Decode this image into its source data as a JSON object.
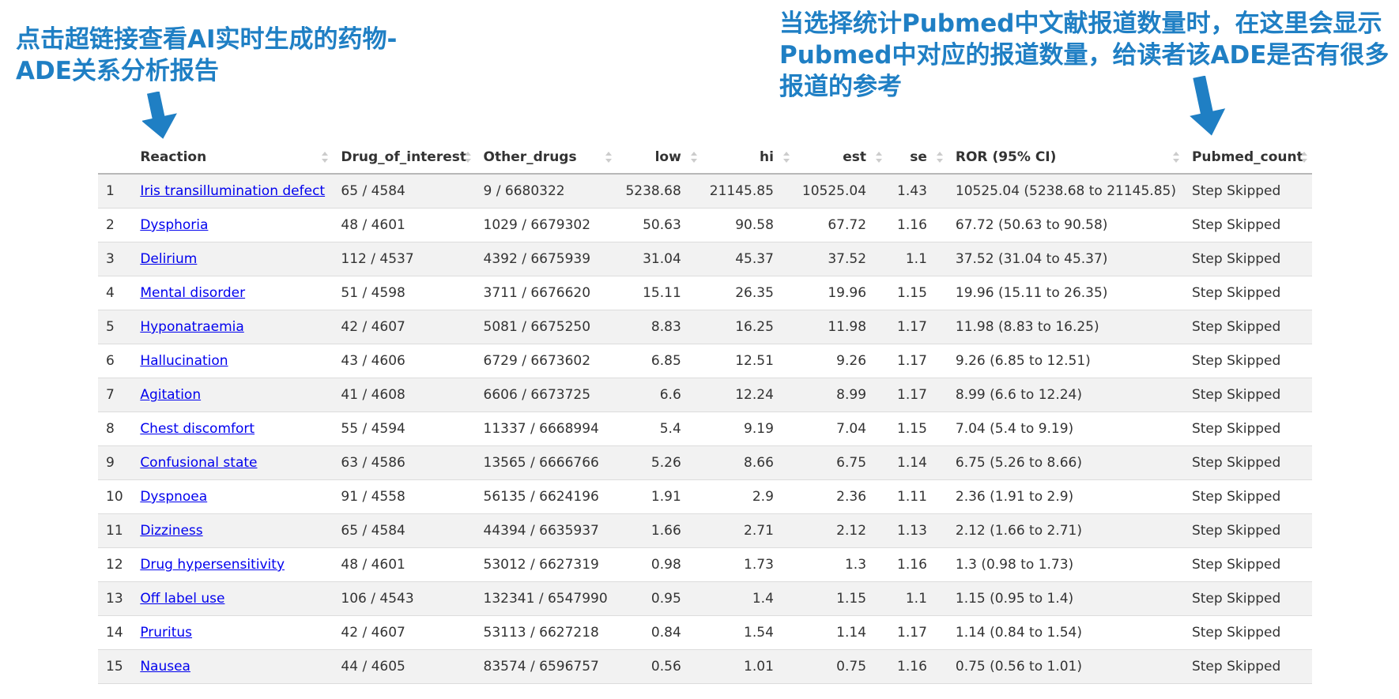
{
  "annotations": {
    "left_text": "点击超链接查看AI实时生成的药物-ADE关系分析报告",
    "right_text": "当选择统计Pubmed中文献报道数量时，在这里会显示Pubmed中对应的报道数量，给读者该ADE是否有很多报道的参考",
    "color": "#1f7fc4"
  },
  "table": {
    "headers": {
      "index": "",
      "reaction": "Reaction",
      "drug_of_interest": "Drug_of_interest",
      "other_drugs": "Other_drugs",
      "low": "low",
      "hi": "hi",
      "est": "est",
      "se": "se",
      "ror": "ROR (95% CI)",
      "pubmed_count": "Pubmed_count"
    },
    "rows": [
      {
        "idx": "1",
        "reaction": "Iris transillumination defect",
        "drug": "65 / 4584",
        "other": "9 / 6680322",
        "low": "5238.68",
        "hi": "21145.85",
        "est": "10525.04",
        "se": "1.43",
        "ror": "10525.04 (5238.68 to 21145.85)",
        "pubmed": "Step Skipped"
      },
      {
        "idx": "2",
        "reaction": "Dysphoria",
        "drug": "48 / 4601",
        "other": "1029 / 6679302",
        "low": "50.63",
        "hi": "90.58",
        "est": "67.72",
        "se": "1.16",
        "ror": "67.72 (50.63 to 90.58)",
        "pubmed": "Step Skipped"
      },
      {
        "idx": "3",
        "reaction": "Delirium",
        "drug": "112 / 4537",
        "other": "4392 / 6675939",
        "low": "31.04",
        "hi": "45.37",
        "est": "37.52",
        "se": "1.1",
        "ror": "37.52 (31.04 to 45.37)",
        "pubmed": "Step Skipped"
      },
      {
        "idx": "4",
        "reaction": "Mental disorder",
        "drug": "51 / 4598",
        "other": "3711 / 6676620",
        "low": "15.11",
        "hi": "26.35",
        "est": "19.96",
        "se": "1.15",
        "ror": "19.96 (15.11 to 26.35)",
        "pubmed": "Step Skipped"
      },
      {
        "idx": "5",
        "reaction": "Hyponatraemia",
        "drug": "42 / 4607",
        "other": "5081 / 6675250",
        "low": "8.83",
        "hi": "16.25",
        "est": "11.98",
        "se": "1.17",
        "ror": "11.98 (8.83 to 16.25)",
        "pubmed": "Step Skipped"
      },
      {
        "idx": "6",
        "reaction": "Hallucination",
        "drug": "43 / 4606",
        "other": "6729 / 6673602",
        "low": "6.85",
        "hi": "12.51",
        "est": "9.26",
        "se": "1.17",
        "ror": "9.26 (6.85 to 12.51)",
        "pubmed": "Step Skipped"
      },
      {
        "idx": "7",
        "reaction": "Agitation",
        "drug": "41 / 4608",
        "other": "6606 / 6673725",
        "low": "6.6",
        "hi": "12.24",
        "est": "8.99",
        "se": "1.17",
        "ror": "8.99 (6.6 to 12.24)",
        "pubmed": "Step Skipped"
      },
      {
        "idx": "8",
        "reaction": "Chest discomfort",
        "drug": "55 / 4594",
        "other": "11337 / 6668994",
        "low": "5.4",
        "hi": "9.19",
        "est": "7.04",
        "se": "1.15",
        "ror": "7.04 (5.4 to 9.19)",
        "pubmed": "Step Skipped"
      },
      {
        "idx": "9",
        "reaction": "Confusional state",
        "drug": "63 / 4586",
        "other": "13565 / 6666766",
        "low": "5.26",
        "hi": "8.66",
        "est": "6.75",
        "se": "1.14",
        "ror": "6.75 (5.26 to 8.66)",
        "pubmed": "Step Skipped"
      },
      {
        "idx": "10",
        "reaction": "Dyspnoea",
        "drug": "91 / 4558",
        "other": "56135 / 6624196",
        "low": "1.91",
        "hi": "2.9",
        "est": "2.36",
        "se": "1.11",
        "ror": "2.36 (1.91 to 2.9)",
        "pubmed": "Step Skipped"
      },
      {
        "idx": "11",
        "reaction": "Dizziness",
        "drug": "65 / 4584",
        "other": "44394 / 6635937",
        "low": "1.66",
        "hi": "2.71",
        "est": "2.12",
        "se": "1.13",
        "ror": "2.12 (1.66 to 2.71)",
        "pubmed": "Step Skipped"
      },
      {
        "idx": "12",
        "reaction": "Drug hypersensitivity",
        "drug": "48 / 4601",
        "other": "53012 / 6627319",
        "low": "0.98",
        "hi": "1.73",
        "est": "1.3",
        "se": "1.16",
        "ror": "1.3 (0.98 to 1.73)",
        "pubmed": "Step Skipped"
      },
      {
        "idx": "13",
        "reaction": "Off label use",
        "drug": "106 / 4543",
        "other": "132341 / 6547990",
        "low": "0.95",
        "hi": "1.4",
        "est": "1.15",
        "se": "1.1",
        "ror": "1.15 (0.95 to 1.4)",
        "pubmed": "Step Skipped"
      },
      {
        "idx": "14",
        "reaction": "Pruritus",
        "drug": "42 / 4607",
        "other": "53113 / 6627218",
        "low": "0.84",
        "hi": "1.54",
        "est": "1.14",
        "se": "1.17",
        "ror": "1.14 (0.84 to 1.54)",
        "pubmed": "Step Skipped"
      },
      {
        "idx": "15",
        "reaction": "Nausea",
        "drug": "44 / 4605",
        "other": "83574 / 6596757",
        "low": "0.56",
        "hi": "1.01",
        "est": "0.75",
        "se": "1.16",
        "ror": "0.75 (0.56 to 1.01)",
        "pubmed": "Step Skipped"
      }
    ]
  }
}
